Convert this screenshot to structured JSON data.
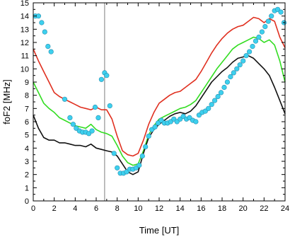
{
  "chart_data": {
    "type": "line",
    "xlabel": "Time [UT]",
    "ylabel": "foF2 [MHz]",
    "xlim": [
      0,
      24
    ],
    "ylim": [
      0,
      15
    ],
    "xticks": [
      0,
      2,
      4,
      6,
      8,
      10,
      12,
      14,
      16,
      18,
      20,
      22,
      24
    ],
    "yticks": [
      0,
      1,
      2,
      3,
      4,
      5,
      6,
      7,
      8,
      9,
      10,
      11,
      12,
      13,
      14,
      15
    ],
    "grid": false,
    "legend": "none",
    "reference_line_x": 6.8,
    "reference_line_color": "#a8a8a8",
    "series": [
      {
        "kind": "line",
        "color": "#e03020",
        "x": [
          0,
          0.5,
          1,
          1.5,
          2,
          2.5,
          3,
          3.5,
          4,
          4.5,
          5,
          5.5,
          6,
          6.5,
          7,
          7.5,
          8,
          8.5,
          9,
          9.5,
          10,
          10.5,
          11,
          11.5,
          12,
          12.5,
          13,
          13.5,
          14,
          14.5,
          15,
          15.5,
          16,
          16.5,
          17,
          17.5,
          18,
          18.5,
          19,
          19.5,
          20,
          20.5,
          21,
          21.5,
          22,
          22.5,
          23,
          23.5,
          24
        ],
        "y": [
          11.5,
          10.6,
          9.8,
          9.0,
          8.2,
          7.9,
          7.7,
          7.5,
          7.3,
          7.1,
          7.0,
          6.9,
          7.1,
          6.9,
          6.9,
          6.2,
          4.9,
          3.8,
          3.5,
          3.4,
          3.6,
          4.6,
          5.8,
          6.7,
          7.4,
          7.7,
          8.0,
          8.2,
          8.3,
          8.6,
          8.9,
          9.2,
          9.8,
          10.5,
          11.2,
          11.8,
          12.3,
          12.7,
          13.0,
          13.2,
          13.3,
          13.6,
          13.9,
          13.8,
          13.5,
          13.8,
          13.6,
          12.4,
          11.6
        ]
      },
      {
        "kind": "line",
        "color": "#33dd22",
        "x": [
          0,
          0.5,
          1,
          1.5,
          2,
          2.5,
          3,
          3.5,
          4,
          4.5,
          5,
          5.5,
          6,
          6.5,
          7,
          7.5,
          8,
          8.5,
          9,
          9.5,
          10,
          10.5,
          11,
          11.5,
          12,
          12.5,
          13,
          13.5,
          14,
          14.5,
          15,
          15.5,
          16,
          16.5,
          17,
          17.5,
          18,
          18.5,
          19,
          19.5,
          20,
          20.5,
          21,
          21.5,
          22,
          22.5,
          23,
          23.5,
          24
        ],
        "y": [
          9.0,
          8.2,
          7.4,
          7.0,
          6.7,
          6.3,
          6.1,
          5.9,
          5.7,
          5.6,
          5.5,
          5.8,
          5.4,
          5.2,
          5.1,
          4.9,
          4.2,
          3.4,
          2.9,
          2.7,
          2.8,
          3.8,
          5.0,
          5.7,
          6.2,
          6.4,
          6.6,
          6.8,
          7.0,
          7.1,
          7.3,
          7.6,
          8.2,
          8.8,
          9.4,
          10.0,
          10.5,
          11.0,
          11.5,
          11.8,
          12.0,
          12.2,
          12.4,
          12.3,
          12.0,
          12.2,
          11.8,
          10.6,
          9.0
        ]
      },
      {
        "kind": "line",
        "color": "#111111",
        "x": [
          0,
          0.5,
          1,
          1.5,
          2,
          2.5,
          3,
          3.5,
          4,
          4.5,
          5,
          5.5,
          6,
          6.5,
          7,
          7.5,
          8,
          8.5,
          9,
          9.5,
          10,
          10.5,
          11,
          11.5,
          12,
          12.5,
          13,
          13.5,
          14,
          14.5,
          15,
          15.5,
          16,
          16.5,
          17,
          17.5,
          18,
          18.5,
          19,
          19.5,
          20,
          20.5,
          21,
          21.5,
          22,
          22.5,
          23,
          23.5,
          24
        ],
        "y": [
          6.5,
          5.5,
          4.8,
          4.6,
          4.6,
          4.4,
          4.4,
          4.3,
          4.2,
          4.2,
          4.1,
          4.3,
          4.0,
          3.9,
          3.8,
          3.7,
          3.4,
          2.8,
          2.2,
          2.0,
          2.2,
          3.6,
          4.8,
          5.4,
          5.8,
          6.1,
          6.4,
          6.6,
          6.7,
          6.6,
          6.8,
          7.2,
          7.8,
          8.4,
          9.0,
          9.4,
          9.8,
          10.1,
          10.5,
          10.8,
          10.9,
          11.0,
          10.8,
          10.4,
          10.0,
          9.5,
          8.6,
          7.6,
          6.6
        ]
      },
      {
        "kind": "scatter",
        "color": "#3dd0ee",
        "x": [
          0.2,
          0.5,
          0.8,
          1.1,
          1.4,
          1.7,
          3.0,
          3.5,
          3.8,
          4.1,
          4.4,
          4.7,
          5.0,
          5.3,
          5.6,
          5.9,
          6.2,
          6.5,
          6.8,
          7.0,
          7.3,
          7.7,
          8.0,
          8.3,
          8.6,
          8.9,
          9.2,
          9.5,
          9.8,
          10.1,
          10.4,
          10.7,
          11.0,
          11.3,
          11.6,
          11.9,
          12.2,
          12.5,
          12.8,
          13.1,
          13.4,
          13.7,
          14.0,
          14.3,
          14.6,
          14.9,
          15.2,
          15.5,
          15.8,
          16.1,
          16.4,
          16.7,
          17.0,
          17.3,
          17.6,
          17.9,
          18.2,
          18.5,
          18.8,
          19.1,
          19.4,
          19.7,
          20.0,
          20.3,
          20.6,
          20.9,
          21.2,
          21.5,
          21.8,
          22.1,
          22.4,
          22.7,
          23.0,
          23.3,
          23.6,
          23.9
        ],
        "y": [
          14.0,
          14.0,
          13.5,
          12.8,
          11.7,
          11.3,
          7.7,
          6.3,
          5.8,
          5.5,
          5.3,
          5.2,
          5.2,
          5.1,
          5.3,
          7.1,
          6.3,
          9.2,
          9.7,
          9.5,
          7.2,
          3.6,
          2.5,
          2.1,
          2.1,
          2.2,
          2.4,
          2.4,
          2.5,
          2.7,
          3.4,
          4.1,
          4.9,
          5.4,
          5.6,
          5.9,
          6.1,
          5.9,
          5.9,
          6.0,
          6.2,
          6.0,
          6.2,
          6.4,
          6.2,
          6.3,
          6.1,
          6.0,
          6.5,
          6.7,
          6.8,
          7.0,
          7.3,
          7.6,
          7.9,
          8.2,
          8.6,
          9.0,
          9.4,
          9.7,
          10.0,
          10.3,
          10.6,
          11.0,
          11.3,
          11.7,
          12.1,
          12.4,
          12.8,
          13.2,
          13.6,
          14.0,
          14.4,
          14.5,
          14.3,
          13.5
        ]
      }
    ]
  }
}
